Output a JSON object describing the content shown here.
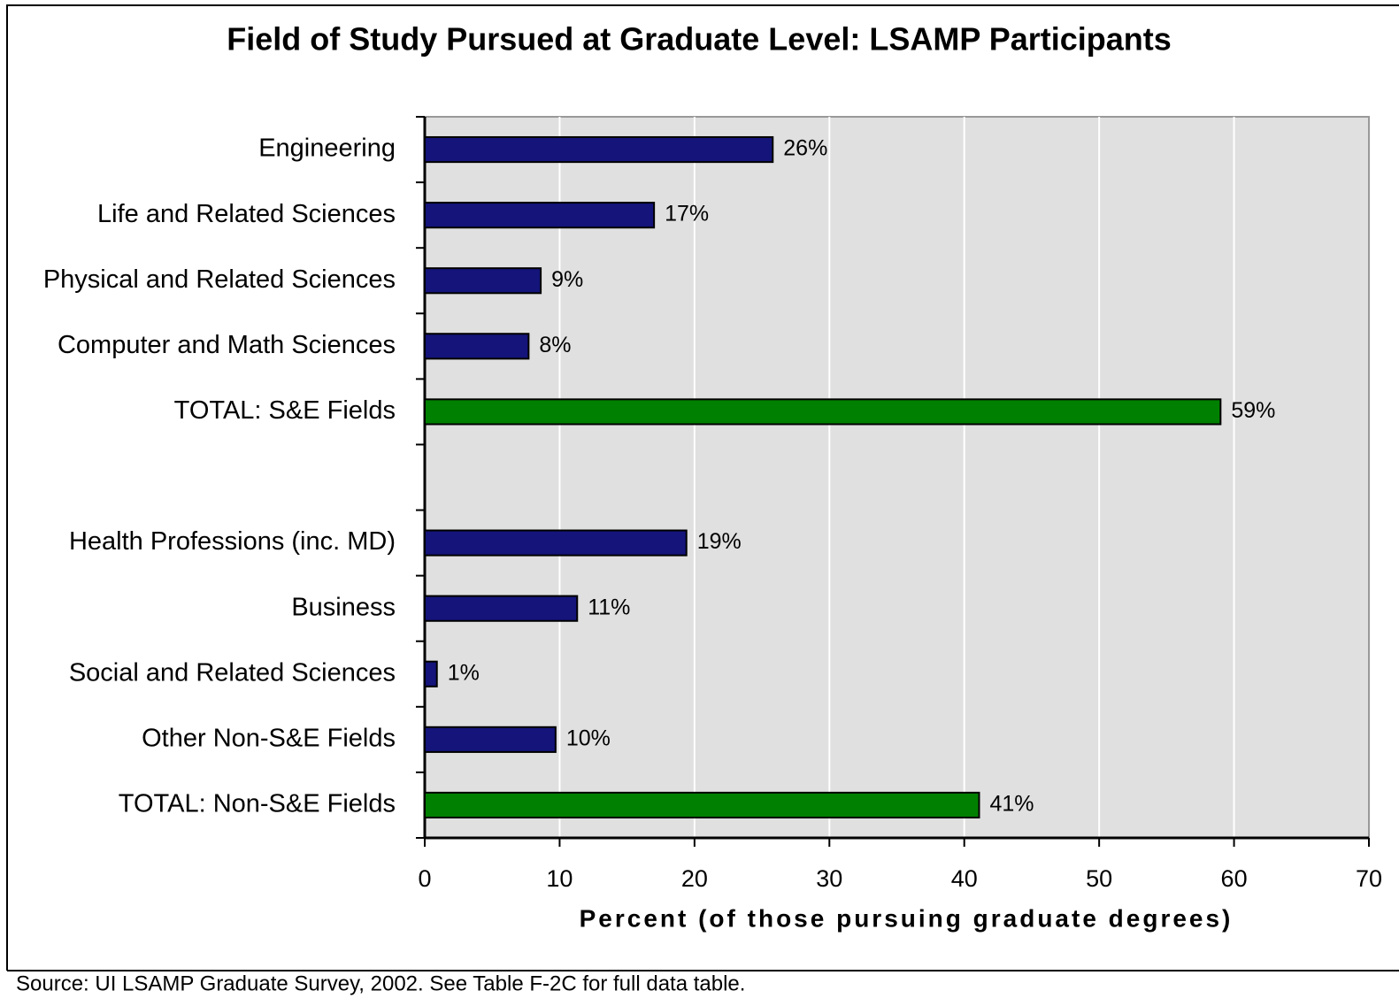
{
  "chart_data": {
    "type": "hbar",
    "title": "Field of Study Pursued at Graduate Level: LSAMP Participants",
    "xlabel": "Percent (of those pursuing graduate degrees)",
    "note": "Source: UI LSAMP Graduate Survey, 2002.  See Table F-2C for full data table.",
    "categories": [
      "Engineering",
      "Life and Related Sciences",
      "Physical and Related Sciences",
      "Computer and Math Sciences",
      "TOTAL: S&E Fields",
      null,
      "Health Professions (inc. MD)",
      "Business",
      "Social and Related Sciences",
      "Other Non-S&E Fields",
      "TOTAL: Non-S&E Fields"
    ],
    "values": [
      25.8,
      17,
      8.6,
      7.7,
      59,
      null,
      19.4,
      11.3,
      0.9,
      9.7,
      41.1
    ],
    "value_labels": [
      "26%",
      "17%",
      "9%",
      "8%",
      "59%",
      null,
      "19%",
      "11%",
      "1%",
      "10%",
      "41%"
    ],
    "colors": [
      "#14147a",
      "#14147a",
      "#14147a",
      "#14147a",
      "#008000",
      null,
      "#14147a",
      "#14147a",
      "#14147a",
      "#14147a",
      "#008000"
    ],
    "xlim": [
      0,
      70
    ],
    "xticks": [
      0,
      10,
      20,
      30,
      40,
      50,
      60,
      70
    ],
    "grid": true
  }
}
